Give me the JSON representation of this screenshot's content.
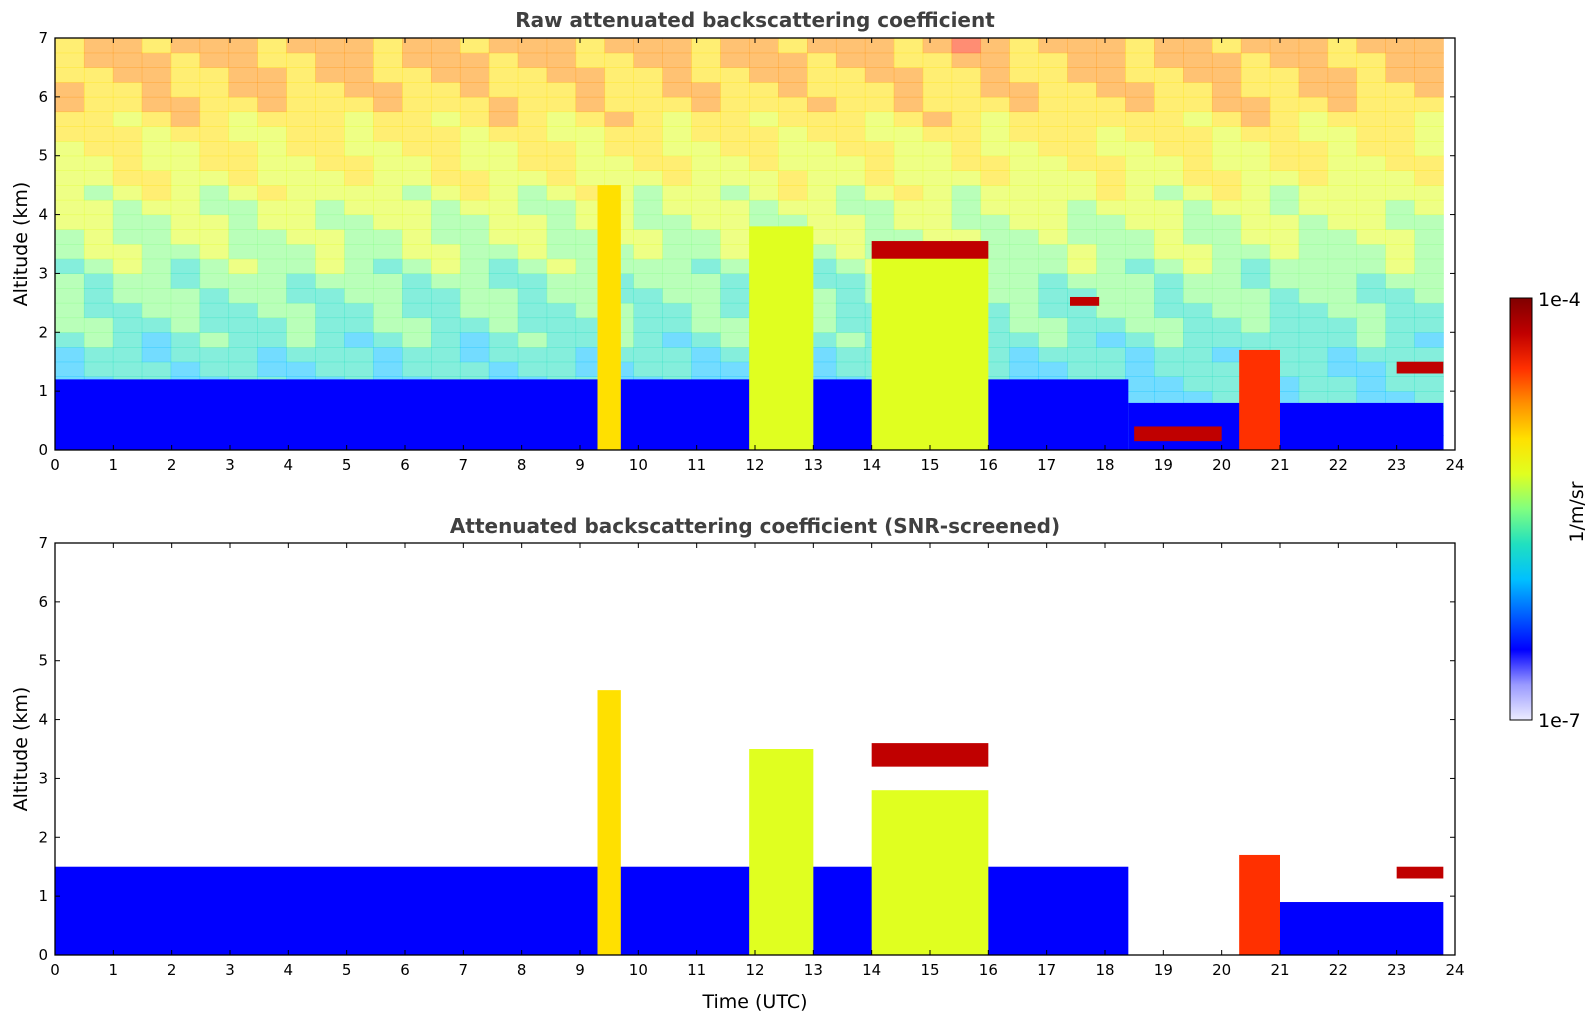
{
  "chart_data": [
    {
      "type": "heatmap",
      "title": "Raw attenuated backscattering coefficient",
      "xlabel": "",
      "ylabel": "Altitude (km)",
      "xlim": [
        0,
        24
      ],
      "ylim": [
        0,
        7
      ],
      "xticks": [
        0,
        1,
        2,
        3,
        4,
        5,
        6,
        7,
        8,
        9,
        10,
        11,
        12,
        13,
        14,
        15,
        16,
        17,
        18,
        19,
        20,
        21,
        22,
        23,
        24
      ],
      "yticks": [
        0,
        1,
        2,
        3,
        4,
        5,
        6,
        7
      ],
      "features": [
        {
          "kind": "boundary_layer",
          "t": [
            0,
            18.4
          ],
          "alt": [
            0,
            1.2
          ],
          "level": 0.2
        },
        {
          "kind": "boundary_layer",
          "t": [
            18.4,
            23.8
          ],
          "alt": [
            0,
            0.8
          ],
          "level": 0.15
        },
        {
          "kind": "column",
          "t": [
            9.3,
            9.7
          ],
          "alt": [
            0,
            4.5
          ],
          "level": 0.65
        },
        {
          "kind": "column",
          "t": [
            11.9,
            13.0
          ],
          "alt": [
            0,
            3.8
          ],
          "level": 0.6
        },
        {
          "kind": "column",
          "t": [
            14.0,
            16.0
          ],
          "alt": [
            0,
            3.3
          ],
          "level": 0.62
        },
        {
          "kind": "cloud_layer",
          "t": [
            14.0,
            16.0
          ],
          "alt": [
            3.25,
            3.55
          ],
          "level": 0.95
        },
        {
          "kind": "cloud_layer",
          "t": [
            17.4,
            17.9
          ],
          "alt": [
            2.45,
            2.6
          ],
          "level": 0.95
        },
        {
          "kind": "cloud_layer",
          "t": [
            18.5,
            20.0
          ],
          "alt": [
            0.15,
            0.4
          ],
          "level": 0.95
        },
        {
          "kind": "column",
          "t": [
            20.3,
            21.0
          ],
          "alt": [
            0,
            1.7
          ],
          "level": 0.85
        },
        {
          "kind": "cloud_layer",
          "t": [
            23.0,
            23.8
          ],
          "alt": [
            1.3,
            1.5
          ],
          "level": 0.95
        }
      ]
    },
    {
      "type": "heatmap",
      "title": "Attenuated backscattering coefficient (SNR-screened)",
      "xlabel": "Time (UTC)",
      "ylabel": "Altitude (km)",
      "xlim": [
        0,
        24
      ],
      "ylim": [
        0,
        7
      ],
      "xticks": [
        0,
        1,
        2,
        3,
        4,
        5,
        6,
        7,
        8,
        9,
        10,
        11,
        12,
        13,
        14,
        15,
        16,
        17,
        18,
        19,
        20,
        21,
        22,
        23,
        24
      ],
      "yticks": [
        0,
        1,
        2,
        3,
        4,
        5,
        6,
        7
      ],
      "features": [
        {
          "kind": "boundary_layer",
          "t": [
            0,
            18.4
          ],
          "alt": [
            0,
            1.5
          ],
          "level": 0.2
        },
        {
          "kind": "boundary_layer",
          "t": [
            21.0,
            23.8
          ],
          "alt": [
            0,
            0.9
          ],
          "level": 0.18
        },
        {
          "kind": "column",
          "t": [
            9.3,
            9.7
          ],
          "alt": [
            0,
            4.5
          ],
          "level": 0.65
        },
        {
          "kind": "column",
          "t": [
            11.9,
            13.0
          ],
          "alt": [
            0,
            3.5
          ],
          "level": 0.6
        },
        {
          "kind": "column",
          "t": [
            14.0,
            16.0
          ],
          "alt": [
            0,
            2.8
          ],
          "level": 0.6
        },
        {
          "kind": "cloud_layer",
          "t": [
            14.0,
            16.0
          ],
          "alt": [
            3.2,
            3.6
          ],
          "level": 0.95
        },
        {
          "kind": "cloud_layer",
          "t": [
            20.3,
            21.0
          ],
          "alt": [
            0,
            1.7
          ],
          "level": 0.85
        },
        {
          "kind": "cloud_layer",
          "t": [
            23.0,
            23.8
          ],
          "alt": [
            1.3,
            1.5
          ],
          "level": 0.95
        }
      ]
    }
  ],
  "colorbar": {
    "label": "1/m/sr",
    "min_label": "1e-7",
    "max_label": "1e-4",
    "colors": [
      "#ececff",
      "#9a9aff",
      "#0000ff",
      "#0060ff",
      "#00c0ff",
      "#20e0c0",
      "#80ff80",
      "#e0ff20",
      "#ffe000",
      "#ff9000",
      "#ff3000",
      "#c00000",
      "#800000"
    ]
  }
}
